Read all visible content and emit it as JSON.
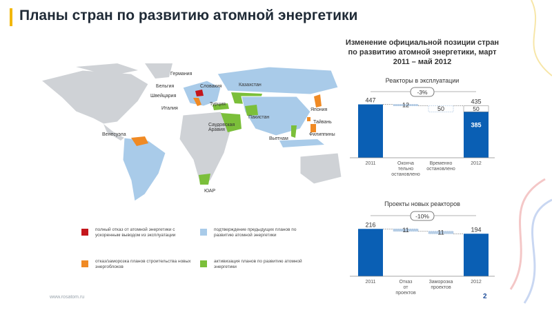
{
  "slide": {
    "title": "Планы стран по развитию атомной энергетики",
    "page_number": "2",
    "footer_url": "www.rosatom.ru"
  },
  "map": {
    "labels": {
      "germany": "Германия",
      "belgium": "Бельгия",
      "switzerland": "Швейцария",
      "italy": "Италия",
      "slovakia": "Словакия",
      "kazakhstan": "Казахстан",
      "turkey": "Турция",
      "saudi": "Саудовская\nАравия",
      "pakistan": "Пакистан",
      "japan": "Япония",
      "taiwan": "Тайвань",
      "philippines": "Филиппины",
      "vietnam": "Вьетнам",
      "venezuela": "Венесуэла",
      "sar": "ЮАР"
    },
    "colors": {
      "land": "#cfd2d6",
      "blue": "#a9cbe9",
      "green": "#7bbf3a",
      "orange": "#f08a24",
      "red": "#c4161c"
    }
  },
  "legend": [
    {
      "color": "#c4161c",
      "text": "полный отказ от атомной энергетики с ускоренным выводом из эксплуатации"
    },
    {
      "color": "#a9cbe9",
      "text": "подтверждение предыдущих планов по развитию атомной энергетики"
    },
    {
      "color": "#f08a24",
      "text": "отказ/заморозка планов строительства новых энергоблоков"
    },
    {
      "color": "#7bbf3a",
      "text": "активизация планов по развитию атомной энергетики"
    }
  ],
  "panel": {
    "title": "Изменение официальной позиции стран по развитию атомной энергетики, март 2011 – май 2012",
    "chart_data": [
      {
        "type": "bar",
        "title": "Реакторы в эксплуатации",
        "change_label": "-3%",
        "categories": [
          "2011",
          "Окончательно остановлено",
          "Временно остановлено",
          "2012"
        ],
        "category_labels": [
          "2011",
          "Оконча тельно остановлено",
          "Временно остановлено",
          "2012"
        ],
        "start": 447,
        "steps": [
          12,
          50
        ],
        "end": 435,
        "end_split": [
          385,
          50
        ],
        "value_labels": [
          "447",
          "12",
          "50",
          "435",
          "50",
          "385"
        ]
      },
      {
        "type": "bar",
        "title": "Проекты новых реакторов",
        "change_label": "-10%",
        "categories": [
          "2011",
          "Отказ от проектов",
          "Заморозка проектов",
          "2012"
        ],
        "category_labels": [
          "2011",
          "Отказ от проектов",
          "Заморозка проектов",
          "2012"
        ],
        "start": 216,
        "steps": [
          11,
          11
        ],
        "end": 194,
        "value_labels": [
          "216",
          "11",
          "11",
          "194"
        ]
      }
    ],
    "colors": {
      "bar": "#0a5fb4",
      "step": "#b8cfe6",
      "frozen": "#ffffff",
      "badge_border": "#555555"
    }
  }
}
